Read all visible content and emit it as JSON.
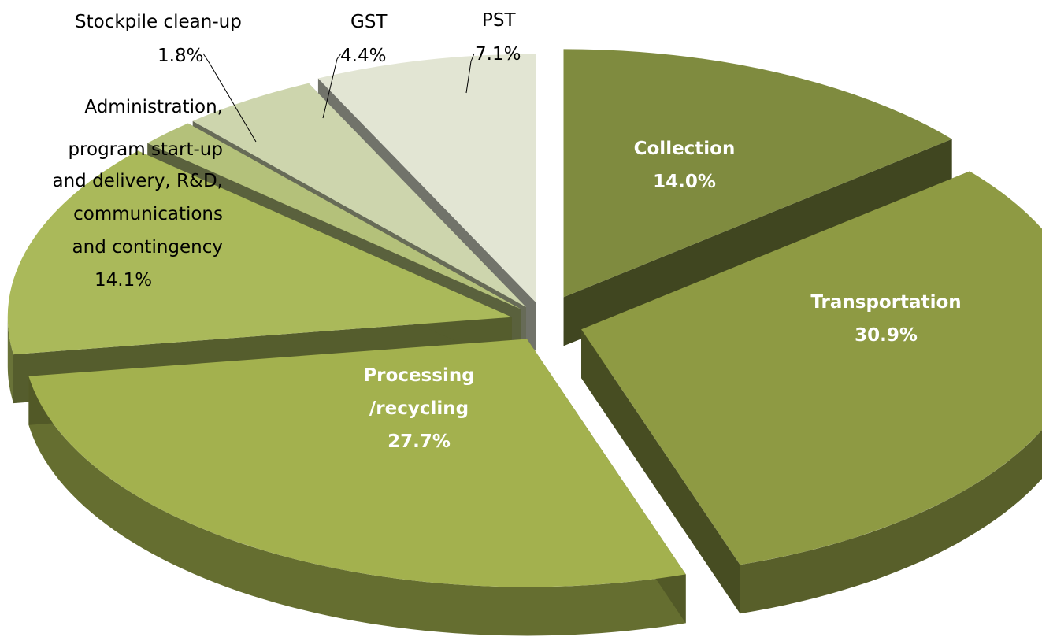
{
  "chart_data": {
    "type": "pie",
    "title": "",
    "slices": [
      {
        "label": "Collection",
        "value": 14.0,
        "display": "14.0%",
        "color": "#7f8b3f"
      },
      {
        "label": "Transportation",
        "value": 30.9,
        "display": "30.9%",
        "color": "#8e9a43"
      },
      {
        "label": "Processing /recycling",
        "value": 27.7,
        "display": "27.7%",
        "color": "#a3b14e"
      },
      {
        "label": "Administration, program start-up and delivery, R&D, communications and contingency",
        "value": 14.1,
        "display": "14.1%",
        "color": "#aab95a"
      },
      {
        "label": "Stockpile clean-up",
        "value": 1.8,
        "display": "1.8%",
        "color": "#b4c17a"
      },
      {
        "label": "GST",
        "value": 4.4,
        "display": "4.4%",
        "color": "#cdd5ad"
      },
      {
        "label": "PST",
        "value": 7.1,
        "display": "7.1%",
        "color": "#e2e5d3"
      }
    ],
    "labels": {
      "collection": [
        "Collection",
        "14.0%"
      ],
      "transportation": [
        "Transportation",
        "30.9%"
      ],
      "processing": [
        "Processing",
        "/recycling",
        "27.7%"
      ],
      "administration": [
        "Administration,",
        "program start-up",
        "and delivery, R&D,",
        "communications",
        "and contingency",
        "14.1%"
      ],
      "stockpile": [
        "Stockpile clean-up",
        "1.8%"
      ],
      "gst": [
        "GST",
        "4.4%"
      ],
      "pst": [
        "PST",
        "7.1%"
      ]
    },
    "start_angle_deg": 270,
    "direction": "clockwise",
    "style": "3d-exploded",
    "legend": "none"
  }
}
